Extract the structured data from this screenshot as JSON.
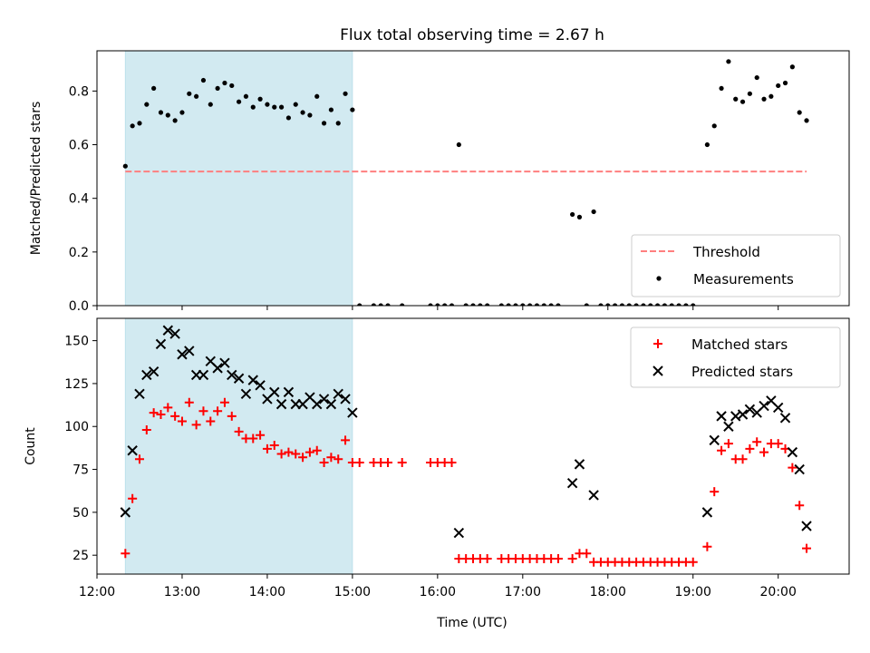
{
  "figure": {
    "title": "Flux total observing time = 2.67 h",
    "xlabel": "Time (UTC)"
  },
  "chart_data": [
    {
      "type": "scatter",
      "title": "Flux total observing time = 2.67 h",
      "xlabel": "",
      "ylabel": "Matched/Predicted stars",
      "xlim": [
        "12:00",
        "20:50"
      ],
      "ylim": [
        0,
        0.95
      ],
      "yticks": [
        0.0,
        0.2,
        0.4,
        0.6,
        0.8
      ],
      "ytick_labels": [
        "0.0",
        "0.2",
        "0.4",
        "0.6",
        "0.8"
      ],
      "grid": false,
      "legend_position": "bottom-right",
      "shaded_region": {
        "start": "12:20",
        "end": "15:00",
        "color": "#add8e6"
      },
      "threshold": {
        "name": "Threshold",
        "value": 0.5,
        "start": "12:20",
        "end": "20:20",
        "color": "#ff7f7f",
        "style": "dashed"
      },
      "series": [
        {
          "name": "Measurements",
          "marker": "dot",
          "color": "#000000",
          "points": [
            [
              "12:20",
              0.52
            ],
            [
              "12:25",
              0.67
            ],
            [
              "12:30",
              0.68
            ],
            [
              "12:35",
              0.75
            ],
            [
              "12:40",
              0.81
            ],
            [
              "12:45",
              0.72
            ],
            [
              "12:50",
              0.71
            ],
            [
              "12:55",
              0.69
            ],
            [
              "13:00",
              0.72
            ],
            [
              "13:05",
              0.79
            ],
            [
              "13:10",
              0.78
            ],
            [
              "13:15",
              0.84
            ],
            [
              "13:20",
              0.75
            ],
            [
              "13:25",
              0.81
            ],
            [
              "13:30",
              0.83
            ],
            [
              "13:35",
              0.82
            ],
            [
              "13:40",
              0.76
            ],
            [
              "13:45",
              0.78
            ],
            [
              "13:50",
              0.74
            ],
            [
              "13:55",
              0.77
            ],
            [
              "14:00",
              0.75
            ],
            [
              "14:05",
              0.74
            ],
            [
              "14:10",
              0.74
            ],
            [
              "14:15",
              0.7
            ],
            [
              "14:20",
              0.75
            ],
            [
              "14:25",
              0.72
            ],
            [
              "14:30",
              0.71
            ],
            [
              "14:35",
              0.78
            ],
            [
              "14:40",
              0.68
            ],
            [
              "14:45",
              0.73
            ],
            [
              "14:50",
              0.68
            ],
            [
              "14:55",
              0.79
            ],
            [
              "15:00",
              0.73
            ],
            [
              "15:05",
              0.0
            ],
            [
              "15:15",
              0.0
            ],
            [
              "15:20",
              0.0
            ],
            [
              "15:25",
              0.0
            ],
            [
              "15:35",
              0.0
            ],
            [
              "15:55",
              0.0
            ],
            [
              "16:00",
              0.0
            ],
            [
              "16:05",
              0.0
            ],
            [
              "16:10",
              0.0
            ],
            [
              "16:15",
              0.6
            ],
            [
              "16:20",
              0.0
            ],
            [
              "16:25",
              0.0
            ],
            [
              "16:30",
              0.0
            ],
            [
              "16:35",
              0.0
            ],
            [
              "16:45",
              0.0
            ],
            [
              "16:50",
              0.0
            ],
            [
              "16:55",
              0.0
            ],
            [
              "17:00",
              0.0
            ],
            [
              "17:05",
              0.0
            ],
            [
              "17:10",
              0.0
            ],
            [
              "17:15",
              0.0
            ],
            [
              "17:20",
              0.0
            ],
            [
              "17:25",
              0.0
            ],
            [
              "17:35",
              0.34
            ],
            [
              "17:40",
              0.33
            ],
            [
              "17:45",
              0.0
            ],
            [
              "17:50",
              0.35
            ],
            [
              "17:55",
              0.0
            ],
            [
              "18:00",
              0.0
            ],
            [
              "18:05",
              0.0
            ],
            [
              "18:10",
              0.0
            ],
            [
              "18:15",
              0.0
            ],
            [
              "18:20",
              0.0
            ],
            [
              "18:25",
              0.0
            ],
            [
              "18:30",
              0.0
            ],
            [
              "18:35",
              0.0
            ],
            [
              "18:40",
              0.0
            ],
            [
              "18:45",
              0.0
            ],
            [
              "18:50",
              0.0
            ],
            [
              "18:55",
              0.0
            ],
            [
              "19:00",
              0.0
            ],
            [
              "19:10",
              0.6
            ],
            [
              "19:15",
              0.67
            ],
            [
              "19:20",
              0.81
            ],
            [
              "19:25",
              0.91
            ],
            [
              "19:30",
              0.77
            ],
            [
              "19:35",
              0.76
            ],
            [
              "19:40",
              0.79
            ],
            [
              "19:45",
              0.85
            ],
            [
              "19:50",
              0.77
            ],
            [
              "19:55",
              0.78
            ],
            [
              "20:00",
              0.82
            ],
            [
              "20:05",
              0.83
            ],
            [
              "20:10",
              0.89
            ],
            [
              "20:15",
              0.72
            ],
            [
              "20:20",
              0.69
            ]
          ]
        }
      ]
    },
    {
      "type": "scatter",
      "title": "",
      "xlabel": "Time (UTC)",
      "ylabel": "Count",
      "xlim": [
        "12:00",
        "20:50"
      ],
      "xticks": [
        "12:00",
        "13:00",
        "14:00",
        "15:00",
        "16:00",
        "17:00",
        "18:00",
        "19:00",
        "20:00"
      ],
      "ylim": [
        14,
        163
      ],
      "yticks": [
        25,
        50,
        75,
        100,
        125,
        150
      ],
      "ytick_labels": [
        "25",
        "50",
        "75",
        "100",
        "125",
        "150"
      ],
      "grid": false,
      "legend_position": "top-right",
      "shaded_region": {
        "start": "12:20",
        "end": "15:00",
        "color": "#add8e6"
      },
      "series": [
        {
          "name": "Matched stars",
          "marker": "plus",
          "color": "#ff0000",
          "points": [
            [
              "12:20",
              26
            ],
            [
              "12:25",
              58
            ],
            [
              "12:30",
              81
            ],
            [
              "12:35",
              98
            ],
            [
              "12:40",
              108
            ],
            [
              "12:45",
              107
            ],
            [
              "12:50",
              111
            ],
            [
              "12:55",
              106
            ],
            [
              "13:00",
              103
            ],
            [
              "13:05",
              114
            ],
            [
              "13:10",
              101
            ],
            [
              "13:15",
              109
            ],
            [
              "13:20",
              103
            ],
            [
              "13:25",
              109
            ],
            [
              "13:30",
              114
            ],
            [
              "13:35",
              106
            ],
            [
              "13:40",
              97
            ],
            [
              "13:45",
              93
            ],
            [
              "13:50",
              93
            ],
            [
              "13:55",
              95
            ],
            [
              "14:00",
              87
            ],
            [
              "14:05",
              89
            ],
            [
              "14:10",
              84
            ],
            [
              "14:15",
              85
            ],
            [
              "14:20",
              84
            ],
            [
              "14:25",
              82
            ],
            [
              "14:30",
              85
            ],
            [
              "14:35",
              86
            ],
            [
              "14:40",
              79
            ],
            [
              "14:45",
              82
            ],
            [
              "14:50",
              81
            ],
            [
              "14:55",
              92
            ],
            [
              "15:00",
              79
            ],
            [
              "15:05",
              79
            ],
            [
              "15:15",
              79
            ],
            [
              "15:20",
              79
            ],
            [
              "15:25",
              79
            ],
            [
              "15:35",
              79
            ],
            [
              "15:55",
              79
            ],
            [
              "16:00",
              79
            ],
            [
              "16:05",
              79
            ],
            [
              "16:10",
              79
            ],
            [
              "16:15",
              23
            ],
            [
              "16:20",
              23
            ],
            [
              "16:25",
              23
            ],
            [
              "16:30",
              23
            ],
            [
              "16:35",
              23
            ],
            [
              "16:45",
              23
            ],
            [
              "16:50",
              23
            ],
            [
              "16:55",
              23
            ],
            [
              "17:00",
              23
            ],
            [
              "17:05",
              23
            ],
            [
              "17:10",
              23
            ],
            [
              "17:15",
              23
            ],
            [
              "17:20",
              23
            ],
            [
              "17:25",
              23
            ],
            [
              "17:35",
              23
            ],
            [
              "17:40",
              26
            ],
            [
              "17:45",
              26
            ],
            [
              "17:50",
              21
            ],
            [
              "17:55",
              21
            ],
            [
              "18:00",
              21
            ],
            [
              "18:05",
              21
            ],
            [
              "18:10",
              21
            ],
            [
              "18:15",
              21
            ],
            [
              "18:20",
              21
            ],
            [
              "18:25",
              21
            ],
            [
              "18:30",
              21
            ],
            [
              "18:35",
              21
            ],
            [
              "18:40",
              21
            ],
            [
              "18:45",
              21
            ],
            [
              "18:50",
              21
            ],
            [
              "18:55",
              21
            ],
            [
              "19:00",
              21
            ],
            [
              "19:10",
              30
            ],
            [
              "19:15",
              62
            ],
            [
              "19:20",
              86
            ],
            [
              "19:25",
              90
            ],
            [
              "19:30",
              81
            ],
            [
              "19:35",
              81
            ],
            [
              "19:40",
              87
            ],
            [
              "19:45",
              91
            ],
            [
              "19:50",
              85
            ],
            [
              "19:55",
              90
            ],
            [
              "20:00",
              90
            ],
            [
              "20:05",
              87
            ],
            [
              "20:10",
              76
            ],
            [
              "20:15",
              54
            ],
            [
              "20:20",
              29
            ]
          ]
        },
        {
          "name": "Predicted stars",
          "marker": "x",
          "color": "#000000",
          "points": [
            [
              "12:20",
              50
            ],
            [
              "12:25",
              86
            ],
            [
              "12:30",
              119
            ],
            [
              "12:35",
              130
            ],
            [
              "12:40",
              132
            ],
            [
              "12:45",
              148
            ],
            [
              "12:50",
              156
            ],
            [
              "12:55",
              154
            ],
            [
              "13:00",
              142
            ],
            [
              "13:05",
              144
            ],
            [
              "13:10",
              130
            ],
            [
              "13:15",
              130
            ],
            [
              "13:20",
              138
            ],
            [
              "13:25",
              134
            ],
            [
              "13:30",
              137
            ],
            [
              "13:35",
              130
            ],
            [
              "13:40",
              128
            ],
            [
              "13:45",
              119
            ],
            [
              "13:50",
              127
            ],
            [
              "13:55",
              124
            ],
            [
              "14:00",
              116
            ],
            [
              "14:05",
              120
            ],
            [
              "14:10",
              113
            ],
            [
              "14:15",
              120
            ],
            [
              "14:20",
              113
            ],
            [
              "14:25",
              113
            ],
            [
              "14:30",
              117
            ],
            [
              "14:35",
              113
            ],
            [
              "14:40",
              116
            ],
            [
              "14:45",
              113
            ],
            [
              "14:50",
              119
            ],
            [
              "14:55",
              116
            ],
            [
              "15:00",
              108
            ],
            [
              "16:15",
              38
            ],
            [
              "17:35",
              67
            ],
            [
              "17:40",
              78
            ],
            [
              "17:50",
              60
            ],
            [
              "19:10",
              50
            ],
            [
              "19:15",
              92
            ],
            [
              "19:20",
              106
            ],
            [
              "19:25",
              100
            ],
            [
              "19:30",
              106
            ],
            [
              "19:35",
              107
            ],
            [
              "19:40",
              110
            ],
            [
              "19:45",
              108
            ],
            [
              "19:50",
              112
            ],
            [
              "19:55",
              115
            ],
            [
              "20:00",
              111
            ],
            [
              "20:05",
              105
            ],
            [
              "20:10",
              85
            ],
            [
              "20:15",
              75
            ],
            [
              "20:20",
              42
            ]
          ]
        }
      ]
    }
  ]
}
